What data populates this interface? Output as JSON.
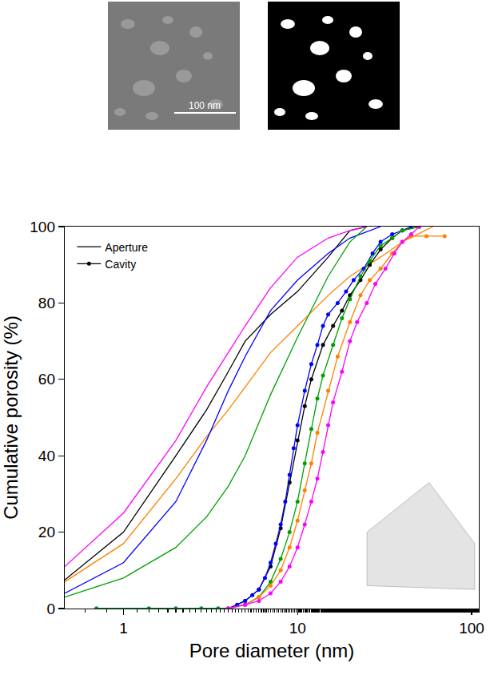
{
  "images": {
    "scale_bar": "100 nm"
  },
  "chart_data": {
    "type": "line",
    "x_label": "Pore diameter (nm)",
    "y_label": "Cumulative porosity (%)",
    "log": "x",
    "xlim": [
      0.46,
      110
    ],
    "xticks": [
      1,
      10,
      100
    ],
    "ylim": [
      0,
      100
    ],
    "yticks": [
      0,
      20,
      40,
      60,
      80,
      100
    ],
    "grid": false,
    "legend": "upper left",
    "series": [
      {
        "name": "Aperture",
        "color": "#000000",
        "line_style": "solid",
        "x": [
          0.46,
          1,
          2,
          3,
          4,
          5,
          7,
          10,
          15,
          20,
          25
        ],
        "values": [
          7.5,
          20,
          40,
          52,
          62,
          70,
          77,
          83,
          92,
          99,
          100
        ]
      },
      {
        "color": "#ff00ff",
        "line_style": "solid",
        "x": [
          0.46,
          1,
          2,
          3,
          4,
          5,
          7,
          10,
          15,
          20,
          25
        ],
        "values": [
          11,
          25,
          44,
          58,
          67,
          74,
          84,
          92,
          97,
          99,
          100
        ]
      },
      {
        "color": "#ff8000",
        "line_style": "solid",
        "x": [
          0.46,
          1,
          2,
          3,
          4,
          5,
          7,
          10,
          15,
          20,
          30,
          40,
          60
        ],
        "values": [
          7,
          17,
          34,
          45,
          52,
          58,
          67,
          74,
          82,
          87,
          92,
          96,
          100
        ]
      },
      {
        "color": "#0000ff",
        "line_style": "solid",
        "x": [
          0.46,
          1,
          2,
          3,
          4,
          5,
          7,
          10,
          15,
          20,
          30
        ],
        "values": [
          4,
          12,
          28,
          44,
          57,
          66,
          78,
          86,
          93,
          97,
          100
        ]
      },
      {
        "color": "#00a000",
        "line_style": "solid",
        "x": [
          0.46,
          1,
          2,
          3,
          4,
          5,
          7,
          10,
          15,
          20,
          25
        ],
        "values": [
          3,
          8,
          16,
          24,
          32,
          40,
          56,
          71,
          87,
          96,
          100
        ]
      },
      {
        "name": "Cavity",
        "color": "#000000",
        "line_style": "solid",
        "marker": "circle",
        "x": [
          4,
          5,
          6,
          7,
          8,
          9,
          10,
          11,
          12,
          14,
          16,
          18,
          20,
          23,
          26,
          30,
          35,
          40,
          50
        ],
        "values": [
          0,
          2,
          5,
          11,
          21,
          33,
          44,
          53,
          60,
          69,
          74,
          78,
          82,
          86,
          90,
          94,
          97,
          99,
          100
        ]
      },
      {
        "color": "#0000ff",
        "line_style": "solid",
        "marker": "circle",
        "x": [
          0.7,
          1.4,
          2,
          2.8,
          3.5,
          4,
          4.5,
          5,
          5.5,
          6,
          6.5,
          7,
          7.5,
          8,
          8.5,
          9,
          9.5,
          10,
          11,
          12,
          13,
          14,
          15,
          17,
          19,
          21,
          24,
          27,
          30,
          35,
          40,
          45
        ],
        "values": [
          0,
          0,
          0,
          0,
          0,
          0,
          1,
          2,
          3.5,
          5,
          8,
          12,
          17,
          22,
          28,
          35,
          42,
          48,
          57,
          64,
          69,
          74,
          77,
          80,
          83,
          86,
          89,
          93,
          96,
          98,
          99,
          100
        ]
      },
      {
        "color": "#00a000",
        "line_style": "solid",
        "marker": "circle",
        "x": [
          0.7,
          1.4,
          2,
          2.8,
          3.5,
          4,
          5,
          6,
          7,
          8,
          9,
          10,
          11,
          12,
          13,
          14,
          16,
          18,
          20,
          23,
          26,
          30,
          35,
          40,
          50
        ],
        "values": [
          0,
          0,
          0,
          0,
          0,
          0,
          1,
          3,
          7,
          13,
          20,
          28,
          38,
          47,
          55,
          61,
          69,
          76,
          81,
          87,
          91,
          95,
          97,
          99,
          100
        ]
      },
      {
        "color": "#ff8000",
        "line_style": "solid",
        "marker": "circle",
        "x": [
          4,
          5,
          6,
          7,
          8,
          9,
          10,
          11,
          12,
          13,
          15,
          17,
          20,
          23,
          26,
          30,
          35,
          40,
          45,
          55,
          70
        ],
        "values": [
          0,
          1,
          3,
          6,
          10,
          16,
          23,
          31,
          38,
          46,
          57,
          66,
          75,
          82,
          86,
          89,
          93,
          96,
          97.5,
          97.5,
          97.5
        ]
      },
      {
        "color": "#ff00ff",
        "line_style": "solid",
        "marker": "circle",
        "x": [
          4,
          5,
          6,
          7,
          8,
          9,
          10,
          11,
          12,
          13,
          14,
          15,
          16,
          18,
          20,
          22,
          25,
          28,
          32,
          36,
          40,
          45,
          50
        ],
        "values": [
          0,
          1,
          2,
          4,
          7,
          11,
          16,
          22,
          28,
          34,
          41,
          48,
          54,
          62,
          70,
          75,
          80,
          85,
          89,
          93,
          96,
          98,
          100
        ]
      }
    ]
  }
}
